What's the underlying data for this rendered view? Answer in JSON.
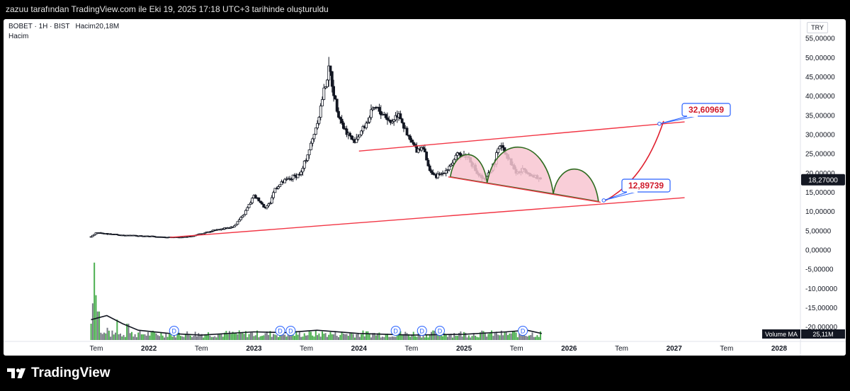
{
  "header": {
    "caption": "zazuu tarafından TradingView.com ile Eki 19, 2025 17:18 UTC+3 tarihinde oluşturuldu"
  },
  "legend": {
    "symbol": "BOBET · 1H · BIST",
    "volume_label": "Hacim",
    "volume_value": "20,18M",
    "indicator": "Hacim"
  },
  "currency": "TRY",
  "price_label_last": "18,27000",
  "volume_ma_label": "Volume MA",
  "volume_ma_value": "25,11M",
  "brand": "TradingView",
  "colors": {
    "up": "#26a69a",
    "down": "#131722",
    "trendline": "#f23645",
    "arc_fill": "#f8c6d1",
    "arc_stroke": "#2e6b1f",
    "callout_border": "#2962ff",
    "volume_up": "#4caf50",
    "volume_down": "#787b86"
  },
  "chart_data": {
    "type": "candlestick",
    "timeframe": "1H",
    "y_axis": {
      "unit": "TRY",
      "ylim": [
        -20,
        55
      ],
      "ticks": [
        "55,00000",
        "50,00000",
        "45,00000",
        "40,00000",
        "35,00000",
        "30,00000",
        "25,00000",
        "20,00000",
        "15,00000",
        "10,00000",
        "5,00000",
        "0,00000",
        "-5,00000",
        "-10,00000",
        "-15,00000",
        "-20,00000"
      ]
    },
    "x_axis": {
      "ticks": [
        {
          "label": "Tem",
          "t": 2021.5,
          "bold": false
        },
        {
          "label": "2022",
          "t": 2022.0,
          "bold": true
        },
        {
          "label": "Tem",
          "t": 2022.5,
          "bold": false
        },
        {
          "label": "2023",
          "t": 2023.0,
          "bold": true
        },
        {
          "label": "Tem",
          "t": 2023.5,
          "bold": false
        },
        {
          "label": "2024",
          "t": 2024.0,
          "bold": true
        },
        {
          "label": "Tem",
          "t": 2024.5,
          "bold": false
        },
        {
          "label": "2025",
          "t": 2025.0,
          "bold": true
        },
        {
          "label": "Tem",
          "t": 2025.5,
          "bold": false
        },
        {
          "label": "2026",
          "t": 2026.0,
          "bold": true
        },
        {
          "label": "Tem",
          "t": 2026.5,
          "bold": false
        },
        {
          "label": "2027",
          "t": 2027.0,
          "bold": true
        },
        {
          "label": "Tem",
          "t": 2027.5,
          "bold": false
        },
        {
          "label": "2028",
          "t": 2028.0,
          "bold": true
        }
      ],
      "range": [
        2021.45,
        2028.4
      ]
    },
    "price_path": [
      [
        2021.45,
        3.5
      ],
      [
        2021.5,
        4.5
      ],
      [
        2021.6,
        4.2
      ],
      [
        2021.8,
        3.8
      ],
      [
        2022.0,
        3.6
      ],
      [
        2022.2,
        3.3
      ],
      [
        2022.4,
        3.5
      ],
      [
        2022.6,
        5.0
      ],
      [
        2022.8,
        6.0
      ],
      [
        2022.9,
        9.0
      ],
      [
        2023.0,
        14.0
      ],
      [
        2023.05,
        13.0
      ],
      [
        2023.1,
        11.0
      ],
      [
        2023.15,
        12.0
      ],
      [
        2023.2,
        16.0
      ],
      [
        2023.3,
        18.0
      ],
      [
        2023.45,
        20.0
      ],
      [
        2023.55,
        28.0
      ],
      [
        2023.62,
        35.0
      ],
      [
        2023.67,
        42.0
      ],
      [
        2023.72,
        47.0
      ],
      [
        2023.78,
        38.0
      ],
      [
        2023.85,
        32.0
      ],
      [
        2023.95,
        28.0
      ],
      [
        2024.05,
        32.0
      ],
      [
        2024.15,
        37.0
      ],
      [
        2024.25,
        35.0
      ],
      [
        2024.3,
        33.0
      ],
      [
        2024.38,
        36.0
      ],
      [
        2024.45,
        30.0
      ],
      [
        2024.55,
        26.0
      ],
      [
        2024.62,
        27.0
      ],
      [
        2024.65,
        22.0
      ],
      [
        2024.72,
        19.0
      ],
      [
        2024.8,
        20.0
      ],
      [
        2024.9,
        23.0
      ],
      [
        2024.95,
        25.0
      ],
      [
        2025.05,
        24.0
      ],
      [
        2025.12,
        20.0
      ],
      [
        2025.2,
        18.0
      ],
      [
        2025.28,
        22.0
      ],
      [
        2025.35,
        28.0
      ],
      [
        2025.42,
        24.0
      ],
      [
        2025.5,
        20.0
      ],
      [
        2025.58,
        21.0
      ],
      [
        2025.66,
        19.0
      ],
      [
        2025.74,
        18.27
      ]
    ],
    "last_price": 18.27,
    "trendlines": [
      {
        "from": [
          2022.2,
          3.3
        ],
        "to": [
          2027.1,
          13.6
        ],
        "name": "lower support"
      },
      {
        "from": [
          2024.0,
          25.7
        ],
        "to": [
          2027.1,
          33.3
        ],
        "name": "upper channel"
      },
      {
        "from": [
          2024.85,
          19.0
        ],
        "to": [
          2026.3,
          12.4
        ],
        "name": "short support"
      }
    ],
    "arcs": [
      {
        "from": [
          2024.87,
          19.0
        ],
        "to": [
          2025.22,
          17.4
        ],
        "peak": 25.5
      },
      {
        "from": [
          2025.22,
          17.4
        ],
        "to": [
          2025.85,
          14.6
        ],
        "peak": 28.8
      },
      {
        "from": [
          2025.85,
          14.6
        ],
        "to": [
          2026.28,
          12.6
        ],
        "peak": 22.0
      }
    ],
    "projection": {
      "from": [
        2026.35,
        12.9
      ],
      "to": [
        2026.9,
        33.5
      ]
    },
    "annotations": [
      {
        "text": "32,60969",
        "value": 32.60969
      },
      {
        "text": "12,89739",
        "value": 12.89739
      }
    ],
    "dividend_markers": [
      2022.24,
      2023.25,
      2023.35,
      2024.35,
      2024.6,
      2024.77,
      2025.56
    ],
    "volume": {
      "spikes": [
        [
          2021.45,
          0.2
        ],
        [
          2021.47,
          0.45
        ],
        [
          2021.48,
          0.95
        ],
        [
          2021.5,
          0.55
        ],
        [
          2021.52,
          0.35
        ],
        [
          2021.6,
          0.15
        ],
        [
          2021.7,
          0.25
        ],
        [
          2021.8,
          0.2
        ]
      ],
      "ma_path": [
        [
          2021.45,
          0.25
        ],
        [
          2021.6,
          0.3
        ],
        [
          2021.75,
          0.2
        ],
        [
          2021.9,
          0.12
        ],
        [
          2022.2,
          0.08
        ],
        [
          2022.5,
          0.06
        ],
        [
          2023.0,
          0.1
        ],
        [
          2023.3,
          0.09
        ],
        [
          2023.6,
          0.12
        ],
        [
          2024.0,
          0.08
        ],
        [
          2024.5,
          0.06
        ],
        [
          2025.0,
          0.07
        ],
        [
          2025.4,
          0.1
        ],
        [
          2025.6,
          0.12
        ],
        [
          2025.74,
          0.08
        ]
      ]
    }
  }
}
